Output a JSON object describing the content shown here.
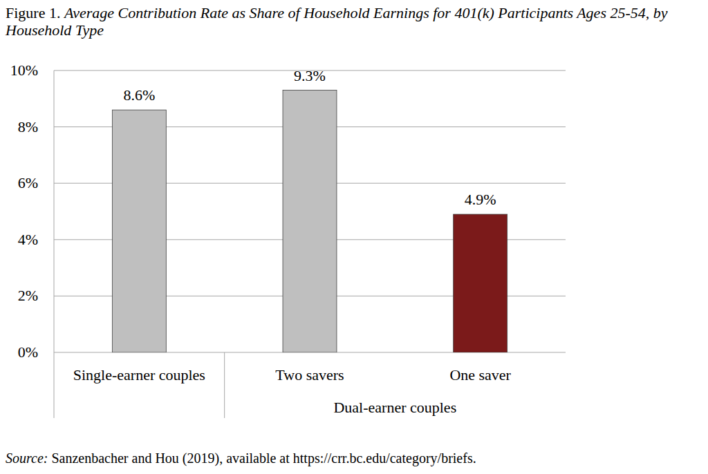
{
  "chart_data": {
    "type": "bar",
    "figure_label": "Figure 1.",
    "title": "Average Contribution Rate as Share of Household Earnings for 401(k) Participants Ages 25-54, by Household Type",
    "categories": [
      "Single-earner couples",
      "Two savers",
      "One saver"
    ],
    "category_groups": [
      {
        "label": "Dual-earner couples",
        "start": 1,
        "end": 2
      }
    ],
    "values": [
      8.6,
      9.3,
      4.9
    ],
    "value_labels": [
      "8.6%",
      "9.3%",
      "4.9%"
    ],
    "colors": [
      "#bfbfbf",
      "#bfbfbf",
      "#7b1a1a"
    ],
    "ylim": [
      0,
      10
    ],
    "yticks": [
      {
        "value": 0,
        "label": "0%"
      },
      {
        "value": 2,
        "label": "2%"
      },
      {
        "value": 4,
        "label": "4%"
      },
      {
        "value": 6,
        "label": "6%"
      },
      {
        "value": 8,
        "label": "8%"
      },
      {
        "value": 10,
        "label": "10%"
      }
    ],
    "grid": true,
    "data_labels": true,
    "source_label": "Source:",
    "source": "Sanzenbacher and Hou (2019), available at https://crr.bc.edu/category/briefs."
  }
}
